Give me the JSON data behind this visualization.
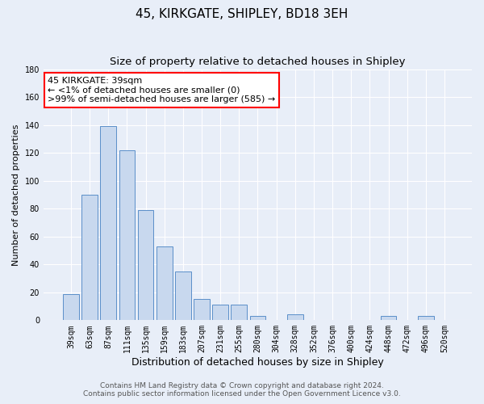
{
  "title": "45, KIRKGATE, SHIPLEY, BD18 3EH",
  "subtitle": "Size of property relative to detached houses in Shipley",
  "xlabel": "Distribution of detached houses by size in Shipley",
  "ylabel": "Number of detached properties",
  "bar_labels": [
    "39sqm",
    "63sqm",
    "87sqm",
    "111sqm",
    "135sqm",
    "159sqm",
    "183sqm",
    "207sqm",
    "231sqm",
    "255sqm",
    "280sqm",
    "304sqm",
    "328sqm",
    "352sqm",
    "376sqm",
    "400sqm",
    "424sqm",
    "448sqm",
    "472sqm",
    "496sqm",
    "520sqm"
  ],
  "bar_values": [
    19,
    90,
    139,
    122,
    79,
    53,
    35,
    15,
    11,
    11,
    3,
    0,
    4,
    0,
    0,
    0,
    0,
    3,
    0,
    3,
    0
  ],
  "bar_color": "#c8d8ee",
  "bar_edge_color": "#5b8fc9",
  "annotation_box_text": "45 KIRKGATE: 39sqm\n← <1% of detached houses are smaller (0)\n>99% of semi-detached houses are larger (585) →",
  "annotation_box_edge_color": "red",
  "annotation_box_face_color": "white",
  "ylim": [
    0,
    180
  ],
  "yticks": [
    0,
    20,
    40,
    60,
    80,
    100,
    120,
    140,
    160,
    180
  ],
  "bg_color": "#e8eef8",
  "plot_bg_color": "#e8eef8",
  "footer_line1": "Contains HM Land Registry data © Crown copyright and database right 2024.",
  "footer_line2": "Contains public sector information licensed under the Open Government Licence v3.0.",
  "title_fontsize": 11,
  "subtitle_fontsize": 9.5,
  "xlabel_fontsize": 9,
  "ylabel_fontsize": 8,
  "tick_fontsize": 7,
  "annotation_fontsize": 8,
  "footer_fontsize": 6.5
}
